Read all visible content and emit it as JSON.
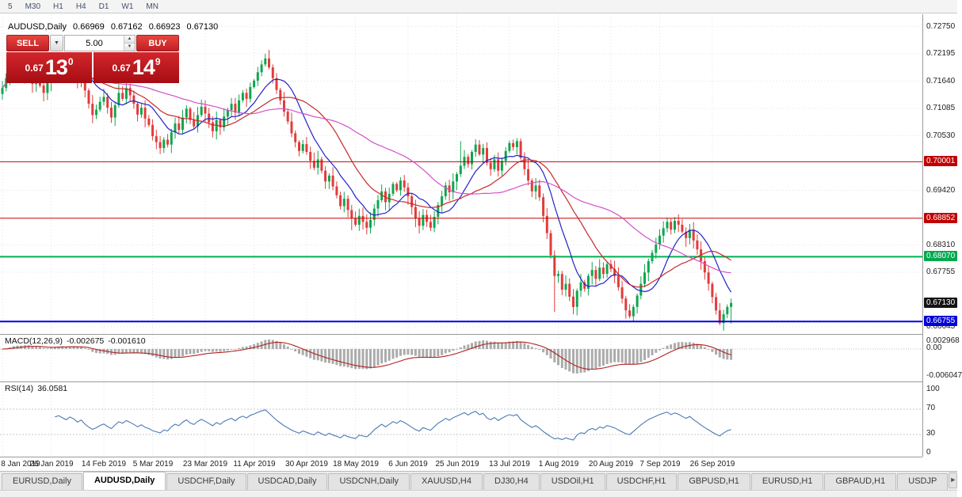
{
  "toolbar": {
    "timeframes": [
      "5",
      "M30",
      "H1",
      "H4",
      "D1",
      "W1",
      "MN"
    ]
  },
  "header": {
    "symbol": "AUDUSD,Daily",
    "open": "0.66969",
    "high": "0.67162",
    "low": "0.66923",
    "close": "0.67130"
  },
  "trade": {
    "sell_label": "SELL",
    "buy_label": "BUY",
    "lot_size": "5.00",
    "dropdown_icon": "▼",
    "spin_up_icon": "▲",
    "spin_down_icon": "▼",
    "sell_price_prefix": "0.67",
    "sell_price_big": "13",
    "sell_price_sup": "0",
    "buy_price_prefix": "0.67",
    "buy_price_big": "14",
    "buy_price_sup": "9"
  },
  "chart_data": {
    "type": "candlestick",
    "symbol": "AUDUSD",
    "period": "Daily",
    "y_range": [
      0.665,
      0.73
    ],
    "y_axis_ticks": [
      "0.72750",
      "0.72195",
      "0.71640",
      "0.71085",
      "0.70530",
      "0.69420",
      "0.68310",
      "0.67755",
      "0.66645"
    ],
    "x_labels": [
      "8 Jan 2019",
      "26 Jan 2019",
      "14 Feb 2019",
      "5 Mar 2019",
      "23 Mar 2019",
      "11 Apr 2019",
      "30 Apr 2019",
      "18 May 2019",
      "6 Jun 2019",
      "25 Jun 2019",
      "13 Jul 2019",
      "1 Aug 2019",
      "20 Aug 2019",
      "7 Sep 2019",
      "26 Sep 2019"
    ],
    "x_label_indices": [
      0,
      13,
      27,
      40,
      54,
      67,
      81,
      94,
      108,
      121,
      135,
      148,
      162,
      175,
      189
    ],
    "closes": [
      0.715,
      0.717,
      0.7192,
      0.7208,
      0.719,
      0.7175,
      0.7198,
      0.7182,
      0.7158,
      0.7176,
      0.7155,
      0.714,
      0.716,
      0.7178,
      0.719,
      0.7202,
      0.7188,
      0.7175,
      0.7198,
      0.7185,
      0.7162,
      0.7178,
      0.7145,
      0.7118,
      0.7095,
      0.7106,
      0.7122,
      0.7132,
      0.711,
      0.709,
      0.7115,
      0.714,
      0.7128,
      0.715,
      0.7135,
      0.7118,
      0.7096,
      0.711,
      0.7088,
      0.7075,
      0.7052,
      0.704,
      0.7028,
      0.7045,
      0.7035,
      0.706,
      0.7078,
      0.7065,
      0.709,
      0.7108,
      0.7085,
      0.7072,
      0.7095,
      0.7112,
      0.7098,
      0.708,
      0.7062,
      0.7085,
      0.707,
      0.7092,
      0.7105,
      0.7118,
      0.71,
      0.7125,
      0.714,
      0.7128,
      0.7152,
      0.7165,
      0.7182,
      0.7198,
      0.721,
      0.7192,
      0.717,
      0.7146,
      0.7125,
      0.7102,
      0.7082,
      0.7058,
      0.704,
      0.7022,
      0.7036,
      0.702,
      0.7002,
      0.6988,
      0.7005,
      0.6982,
      0.696,
      0.6972,
      0.695,
      0.6932,
      0.691,
      0.6925,
      0.6902,
      0.6885,
      0.6872,
      0.689,
      0.6878,
      0.6866,
      0.6882,
      0.6905,
      0.6922,
      0.694,
      0.6918,
      0.6935,
      0.6955,
      0.6942,
      0.6962,
      0.6948,
      0.693,
      0.6908,
      0.6885,
      0.687,
      0.6892,
      0.6878,
      0.6866,
      0.6888,
      0.6912,
      0.693,
      0.6952,
      0.6938,
      0.696,
      0.6975,
      0.6992,
      0.701,
      0.6995,
      0.702,
      0.7035,
      0.7015,
      0.7028,
      0.6998,
      0.6985,
      0.7005,
      0.6982,
      0.7002,
      0.7022,
      0.7038,
      0.703,
      0.7042,
      0.7008,
      0.6985,
      0.6962,
      0.694,
      0.6952,
      0.6928,
      0.689,
      0.6855,
      0.681,
      0.6768,
      0.6772,
      0.674,
      0.6752,
      0.6726,
      0.6705,
      0.6738,
      0.6755,
      0.6742,
      0.6768,
      0.678,
      0.6762,
      0.6785,
      0.6772,
      0.6792,
      0.6782,
      0.6768,
      0.6745,
      0.6722,
      0.6698,
      0.6686,
      0.6705,
      0.6728,
      0.6752,
      0.6775,
      0.6798,
      0.6815,
      0.6832,
      0.685,
      0.6865,
      0.6878,
      0.6862,
      0.688,
      0.6872,
      0.6858,
      0.6845,
      0.6862,
      0.684,
      0.6822,
      0.6798,
      0.6775,
      0.6752,
      0.6725,
      0.6698,
      0.6672,
      0.669,
      0.6705,
      0.6713
    ],
    "wick_overrides": {
      "16": {
        "h": 0.7215
      },
      "70": {
        "h": 0.722
      },
      "93": {
        "l": 0.6861
      },
      "114": {
        "l": 0.6859
      },
      "122": {
        "h": 0.7042
      },
      "126": {
        "h": 0.7046
      },
      "137": {
        "h": 0.7048
      },
      "147": {
        "l": 0.6695
      },
      "152": {
        "l": 0.669
      },
      "166": {
        "l": 0.6681
      },
      "191": {
        "l": 0.6668
      },
      "194": {
        "l": 0.6671
      }
    },
    "candle_up_color": "#0ea64e",
    "candle_down_color": "#e23b3b",
    "moving_averages": [
      {
        "name": "ma-fast",
        "period": 10,
        "color": "#2222c8"
      },
      {
        "name": "ma-mid",
        "period": 21,
        "color": "#c62a2a"
      },
      {
        "name": "ma-slow",
        "period": 45,
        "color": "#d44fc8"
      }
    ],
    "levels": [
      {
        "price": 0.70001,
        "label": "0.70001",
        "color": "#cc0000",
        "badge_bg": "#c00000",
        "width": 1
      },
      {
        "price": 0.68852,
        "label": "0.68852",
        "color": "#cc0000",
        "badge_bg": "#c00000",
        "width": 1
      },
      {
        "price": 0.6807,
        "label": "0.68070",
        "color": "#00b050",
        "badge_bg": "#00a84f",
        "width": 2
      },
      {
        "price": 0.66755,
        "label": "0.66755",
        "color": "#0000ee",
        "badge_bg": "#0000d8",
        "width": 2
      }
    ],
    "current_price": {
      "value": 0.6713,
      "label": "0.67130",
      "badge_bg": "#141414"
    },
    "indicators": {
      "macd": {
        "label": "MACD(12,26,9)",
        "value_main": "-0.002675",
        "value_signal": "-0.001610",
        "params": [
          12,
          26,
          9
        ],
        "axis_labels": [
          "0.002968",
          "0.00",
          "-0.006047"
        ],
        "hist_color": "#ababab",
        "signal_color": "#b22222"
      },
      "rsi": {
        "label": "RSI(14)",
        "value": "36.0581",
        "period": 14,
        "axis_labels": [
          "100",
          "70",
          "30",
          "0"
        ],
        "level_lines": [
          70,
          30
        ],
        "line_color": "#4a7ab5"
      }
    }
  },
  "tabs": {
    "items": [
      {
        "label": "EURUSD,Daily",
        "active": false
      },
      {
        "label": "AUDUSD,Daily",
        "active": true
      },
      {
        "label": "USDCHF,Daily",
        "active": false
      },
      {
        "label": "USDCAD,Daily",
        "active": false
      },
      {
        "label": "USDCNH,Daily",
        "active": false
      },
      {
        "label": "XAUUSD,H4",
        "active": false
      },
      {
        "label": "DJ30,H4",
        "active": false
      },
      {
        "label": "USDOil,H1",
        "active": false
      },
      {
        "label": "USDCHF,H1",
        "active": false
      },
      {
        "label": "GBPUSD,H1",
        "active": false
      },
      {
        "label": "EURUSD,H1",
        "active": false
      },
      {
        "label": "GBPAUD,H1",
        "active": false
      },
      {
        "label": "USDJP",
        "active": false
      }
    ],
    "scroll_right_icon": "►"
  }
}
